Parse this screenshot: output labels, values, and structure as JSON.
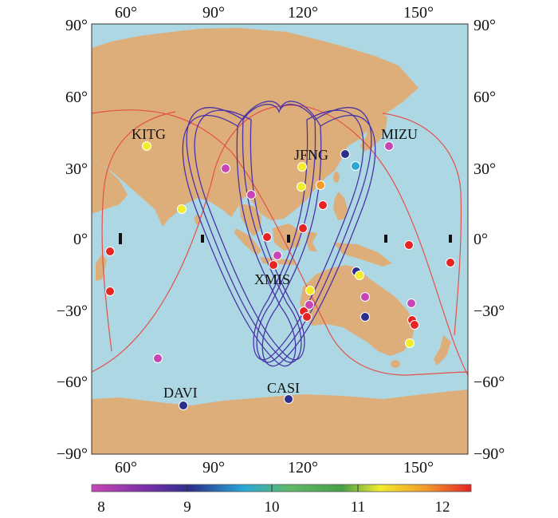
{
  "map": {
    "lon_ticks": [
      "60°",
      "90°",
      "120°",
      "150°"
    ],
    "lat_ticks": [
      "90°",
      "60°",
      "30°",
      "0°",
      "−30°",
      "−60°",
      "−90°"
    ],
    "station_labels": [
      "KITG",
      "JFNG",
      "MIZU",
      "XMIS",
      "DAVI",
      "CASI"
    ]
  },
  "colorbar": {
    "labels": [
      "8",
      "9",
      "10",
      "11",
      "12"
    ],
    "stops": [
      "#c845b5",
      "#7b2fa8",
      "#2a2f8c",
      "#28a8d8",
      "#5fba6a",
      "#46a046",
      "#f2ec2a",
      "#f29a2a",
      "#e52424"
    ]
  },
  "colors": {
    "ocean": "#add8e3",
    "land": "#deae7a",
    "red_track": "#e3504a",
    "purple_track": "#4a33a8"
  }
}
